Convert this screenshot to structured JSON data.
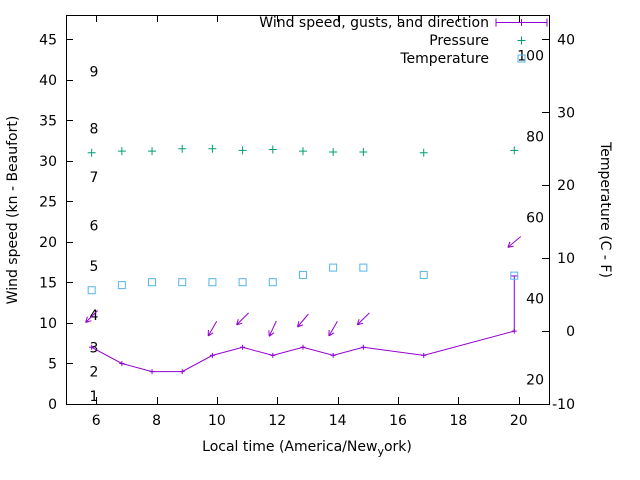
{
  "figure": {
    "background": "#ffffff",
    "text_color": "#000000"
  },
  "chart_data": {
    "type": "line",
    "title": "",
    "xlabel": "Local time (America/New_york)",
    "xlabel_parts": {
      "prefix": "Local time (America/New",
      "subscript": "y",
      "suffix": "ork)"
    },
    "ylabel": "Wind speed (kn - Beaufort)",
    "y2label": "Temperature (C - F)",
    "x_axis": {
      "range": [
        5,
        21
      ],
      "major_ticks": [
        6,
        8,
        10,
        12,
        14,
        16,
        18,
        20
      ]
    },
    "y_axis": {
      "range": [
        0,
        48
      ],
      "major_ticks": [
        0,
        5,
        10,
        15,
        20,
        25,
        30,
        35,
        40,
        45
      ],
      "beaufort_labels": [
        {
          "label": "1",
          "kn": 1
        },
        {
          "label": "2",
          "kn": 4
        },
        {
          "label": "3",
          "kn": 7
        },
        {
          "label": "4",
          "kn": 11
        },
        {
          "label": "5",
          "kn": 17
        },
        {
          "label": "6",
          "kn": 22
        },
        {
          "label": "7",
          "kn": 28
        },
        {
          "label": "8",
          "kn": 34
        },
        {
          "label": "9",
          "kn": 41
        }
      ]
    },
    "y2_axis": {
      "range_c": [
        -10,
        43.3
      ],
      "celsius_ticks": [
        -10,
        0,
        10,
        20,
        30,
        40
      ],
      "fahrenheit_labels": [
        20,
        40,
        60,
        80,
        100
      ]
    },
    "legend": {
      "items": [
        {
          "label": "Wind speed, gusts, and direction",
          "color": "#9400d3",
          "sample": "errorbar-line"
        },
        {
          "label": "Pressure",
          "color": "#009e73",
          "sample": "plus"
        },
        {
          "label": "Temperature",
          "color": "#56b4e9",
          "sample": "square"
        }
      ]
    },
    "series": {
      "wind_speed": {
        "name": "Wind speed, gusts, and direction",
        "color": "#9400d3",
        "x": [
          5.85,
          6.85,
          7.85,
          8.85,
          9.85,
          10.85,
          11.85,
          12.85,
          13.85,
          14.85,
          16.85,
          19.85
        ],
        "values_kn": [
          7,
          5,
          4,
          4,
          6,
          7,
          6,
          7,
          6,
          7,
          6,
          9
        ]
      },
      "wind_gusts": {
        "color": "#9400d3",
        "bars": [
          {
            "x": 19.85,
            "from_kn": 9,
            "to_kn": 15.8
          }
        ]
      },
      "wind_direction": {
        "color": "#9400d3",
        "arrows": [
          {
            "x": 5.85,
            "kn": 10.8,
            "dir_deg": 225
          },
          {
            "x": 9.85,
            "kn": 9.3,
            "dir_deg": 210
          },
          {
            "x": 10.85,
            "kn": 10.5,
            "dir_deg": 225
          },
          {
            "x": 11.85,
            "kn": 9.3,
            "dir_deg": 205
          },
          {
            "x": 12.85,
            "kn": 10.3,
            "dir_deg": 220
          },
          {
            "x": 13.85,
            "kn": 9.3,
            "dir_deg": 210
          },
          {
            "x": 14.85,
            "kn": 10.5,
            "dir_deg": 225
          },
          {
            "x": 19.85,
            "kn": 20.0,
            "dir_deg": 230
          }
        ]
      },
      "pressure": {
        "name": "Pressure",
        "color": "#009e73",
        "x": [
          5.85,
          6.85,
          7.85,
          8.85,
          9.85,
          10.85,
          11.85,
          12.85,
          13.85,
          14.85,
          16.85,
          19.85
        ],
        "values_kn_axis": [
          31.0,
          31.2,
          31.2,
          31.5,
          31.5,
          31.3,
          31.4,
          31.2,
          31.1,
          31.1,
          31.0,
          31.3
        ]
      },
      "temperature": {
        "name": "Temperature",
        "color": "#56b4e9",
        "x": [
          5.85,
          6.85,
          7.85,
          8.85,
          9.85,
          10.85,
          11.85,
          12.85,
          13.85,
          14.85,
          16.85,
          19.85
        ],
        "values_c": [
          5.6,
          6.3,
          6.7,
          6.7,
          6.7,
          6.7,
          6.7,
          7.7,
          8.7,
          8.7,
          7.7,
          7.6
        ]
      }
    }
  }
}
